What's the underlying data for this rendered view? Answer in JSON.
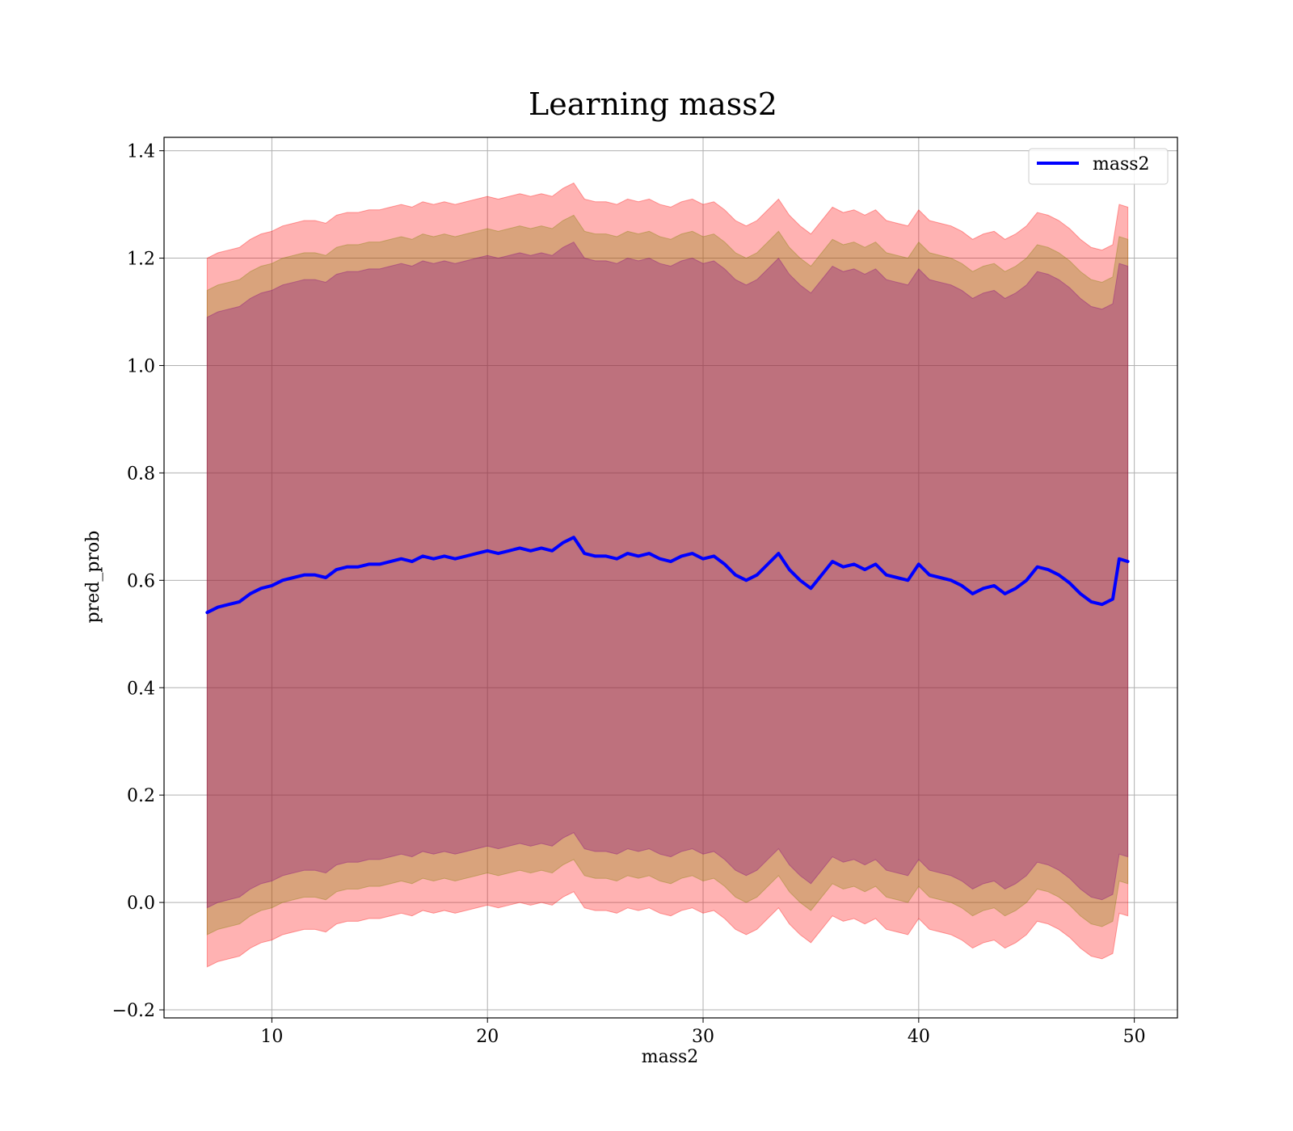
{
  "chart_data": {
    "type": "line",
    "title": "Learning mass2",
    "xlabel": "mass2",
    "ylabel": "pred_prob",
    "xlim": [
      5,
      52
    ],
    "ylim": [
      -0.215,
      1.425
    ],
    "x_ticks": [
      10,
      20,
      30,
      40,
      50
    ],
    "x_tick_labels": [
      "10",
      "20",
      "30",
      "40",
      "50"
    ],
    "y_ticks": [
      -0.2,
      0.0,
      0.2,
      0.4,
      0.6,
      0.8,
      1.0,
      1.2,
      1.4
    ],
    "y_tick_labels": [
      "−0.2",
      "0.0",
      "0.2",
      "0.4",
      "0.6",
      "0.8",
      "1.0",
      "1.2",
      "1.4"
    ],
    "grid": true,
    "legend_position": "top-right",
    "colors": {
      "line": "#0000ff",
      "band_outer": "#ff0000",
      "band_middle": "#808000",
      "band_inner": "#800080",
      "grid": "#b0b0b0"
    },
    "band_alphas": [
      0.3,
      0.3,
      0.3
    ],
    "band_half_widths": [
      0.66,
      0.6,
      0.55
    ],
    "series": [
      {
        "name": "mass2",
        "x": [
          7,
          7.5,
          8,
          8.5,
          9,
          9.5,
          10,
          10.5,
          11,
          11.5,
          12,
          12.5,
          13,
          13.5,
          14,
          14.5,
          15,
          15.5,
          16,
          16.5,
          17,
          17.5,
          18,
          18.5,
          19,
          19.5,
          20,
          20.5,
          21,
          21.5,
          22,
          22.5,
          23,
          23.5,
          24,
          24.5,
          25,
          25.5,
          26,
          26.5,
          27,
          27.5,
          28,
          28.5,
          29,
          29.5,
          30,
          30.5,
          31,
          31.5,
          32,
          32.5,
          33,
          33.5,
          34,
          34.5,
          35,
          35.5,
          36,
          36.5,
          37,
          37.5,
          38,
          38.5,
          39,
          39.5,
          40,
          40.5,
          41,
          41.5,
          42,
          42.5,
          43,
          43.5,
          44,
          44.5,
          45,
          45.5,
          46,
          46.5,
          47,
          47.5,
          48,
          48.5,
          49,
          49.3,
          49.7
        ],
        "y": [
          0.54,
          0.55,
          0.555,
          0.56,
          0.575,
          0.585,
          0.59,
          0.6,
          0.605,
          0.61,
          0.61,
          0.605,
          0.62,
          0.625,
          0.625,
          0.63,
          0.63,
          0.635,
          0.64,
          0.635,
          0.645,
          0.64,
          0.645,
          0.64,
          0.645,
          0.65,
          0.655,
          0.65,
          0.655,
          0.66,
          0.655,
          0.66,
          0.655,
          0.67,
          0.68,
          0.65,
          0.645,
          0.645,
          0.64,
          0.65,
          0.645,
          0.65,
          0.64,
          0.635,
          0.645,
          0.65,
          0.64,
          0.645,
          0.63,
          0.61,
          0.6,
          0.61,
          0.63,
          0.65,
          0.62,
          0.6,
          0.585,
          0.61,
          0.635,
          0.625,
          0.63,
          0.62,
          0.63,
          0.61,
          0.605,
          0.6,
          0.63,
          0.61,
          0.605,
          0.6,
          0.59,
          0.575,
          0.585,
          0.59,
          0.575,
          0.585,
          0.6,
          0.625,
          0.62,
          0.61,
          0.595,
          0.575,
          0.56,
          0.555,
          0.565,
          0.64,
          0.635
        ]
      }
    ]
  }
}
